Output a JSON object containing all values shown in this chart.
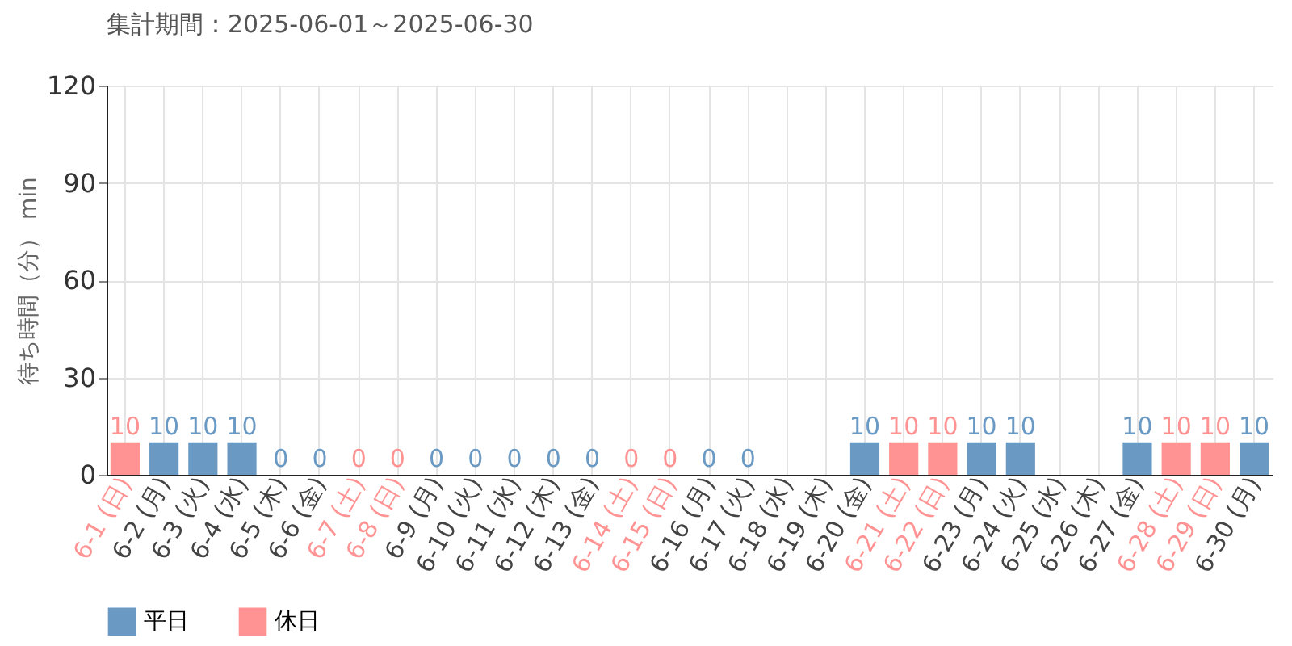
{
  "chart_data": {
    "type": "bar",
    "title": "集計期間：2025-06-01～2025-06-30",
    "ylabel": "待ち時間（分） min",
    "categories": [
      "6-1 (日)",
      "6-2 (月)",
      "6-3 (火)",
      "6-4 (水)",
      "6-5 (木)",
      "6-6 (金)",
      "6-7 (土)",
      "6-8 (日)",
      "6-9 (月)",
      "6-10 (火)",
      "6-11 (水)",
      "6-12 (木)",
      "6-13 (金)",
      "6-14 (土)",
      "6-15 (日)",
      "6-16 (月)",
      "6-17 (火)",
      "6-18 (水)",
      "6-19 (木)",
      "6-20 (金)",
      "6-21 (土)",
      "6-22 (日)",
      "6-23 (月)",
      "6-24 (火)",
      "6-25 (水)",
      "6-26 (木)",
      "6-27 (金)",
      "6-28 (土)",
      "6-29 (日)",
      "6-30 (月)"
    ],
    "series": [
      {
        "name": "平日",
        "color": "#6a9ac4",
        "values": [
          null,
          10,
          10,
          10,
          0,
          0,
          null,
          null,
          0,
          0,
          0,
          0,
          0,
          null,
          null,
          0,
          0,
          null,
          null,
          10,
          null,
          null,
          10,
          10,
          null,
          null,
          10,
          null,
          null,
          10
        ]
      },
      {
        "name": "休日",
        "color": "#ff9393",
        "values": [
          10,
          null,
          null,
          null,
          null,
          null,
          0,
          0,
          null,
          null,
          null,
          null,
          null,
          0,
          0,
          null,
          null,
          null,
          null,
          null,
          10,
          10,
          null,
          null,
          null,
          null,
          null,
          10,
          10,
          null
        ]
      }
    ],
    "ylim": [
      0,
      120
    ],
    "yticks": [
      0,
      30,
      60,
      90,
      120
    ],
    "grid": true,
    "legend": "bottom left",
    "data_labels": true
  }
}
